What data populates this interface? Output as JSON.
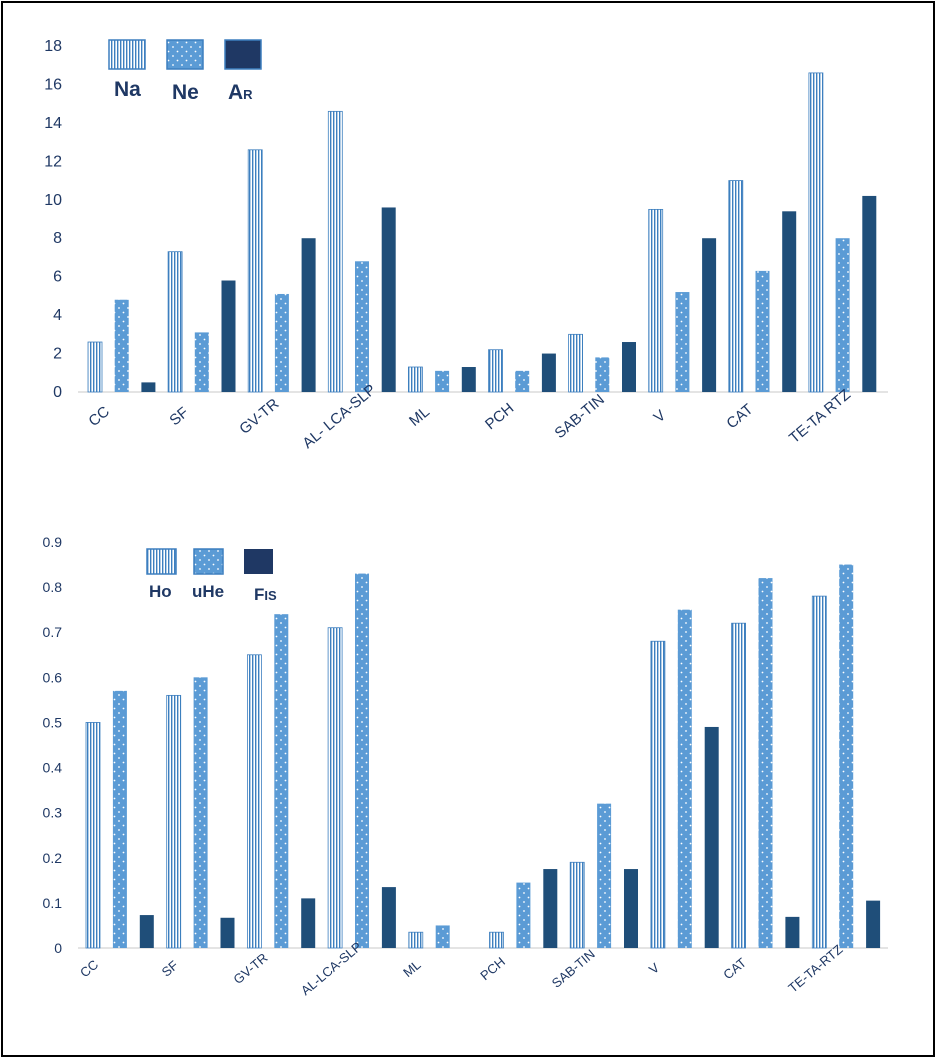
{
  "chart_data": [
    {
      "type": "bar",
      "categories": [
        "CC",
        "SF",
        "GV-TR",
        "AL- LCA-SLP",
        "ML",
        "PCH",
        "SAB-TIN",
        "V",
        "CAT",
        "TE-TA RTZ"
      ],
      "series": [
        {
          "name": "Na",
          "values": [
            2.6,
            7.3,
            12.6,
            14.6,
            1.3,
            2.2,
            3.0,
            9.5,
            11.0,
            16.6
          ]
        },
        {
          "name": "Ne",
          "values": [
            4.8,
            3.1,
            5.1,
            6.8,
            1.1,
            1.1,
            1.8,
            5.2,
            6.3,
            8.0
          ]
        },
        {
          "name": "AR",
          "name_main": "A",
          "name_sub": "R",
          "values": [
            0.5,
            5.8,
            8.0,
            9.6,
            1.3,
            2.0,
            2.6,
            8.0,
            9.4,
            10.2
          ]
        }
      ],
      "ylim": [
        0,
        18
      ],
      "yticks": [
        "0",
        "2",
        "4",
        "6",
        "8",
        "10",
        "12",
        "14",
        "16",
        "18"
      ],
      "grid": false,
      "legend": "top-left"
    },
    {
      "type": "bar",
      "categories": [
        "CC",
        "SF",
        "GV-TR",
        "AL-LCA-SLP",
        "ML",
        "PCH",
        "SAB-TIN",
        "V",
        "CAT",
        "TE-TA-RTZ"
      ],
      "series": [
        {
          "name": "Ho",
          "values": [
            0.5,
            0.56,
            0.65,
            0.71,
            0.035,
            0.035,
            0.19,
            0.68,
            0.72,
            0.78
          ]
        },
        {
          "name": "uHe",
          "values": [
            0.57,
            0.6,
            0.74,
            0.83,
            0.05,
            0.145,
            0.32,
            0.75,
            0.82,
            0.85
          ]
        },
        {
          "name": "FIS",
          "name_main": "F",
          "name_sub": "IS",
          "values": [
            0.073,
            0.067,
            0.11,
            0.135,
            0.0,
            0.175,
            0.175,
            0.49,
            0.069,
            0.105
          ]
        }
      ],
      "ylim": [
        0,
        0.9
      ],
      "yticks": [
        "0",
        "0.1",
        "0.2",
        "0.3",
        "0.4",
        "0.5",
        "0.6",
        "0.7",
        "0.8",
        "0.9"
      ],
      "grid": false,
      "legend": "top-left"
    }
  ],
  "colors": {
    "stripe": "#3d7fbf",
    "dotted": "#5b9bd5",
    "dark": "#1f4e79",
    "text": "#1f3864",
    "axis": "#c8c8c8"
  }
}
